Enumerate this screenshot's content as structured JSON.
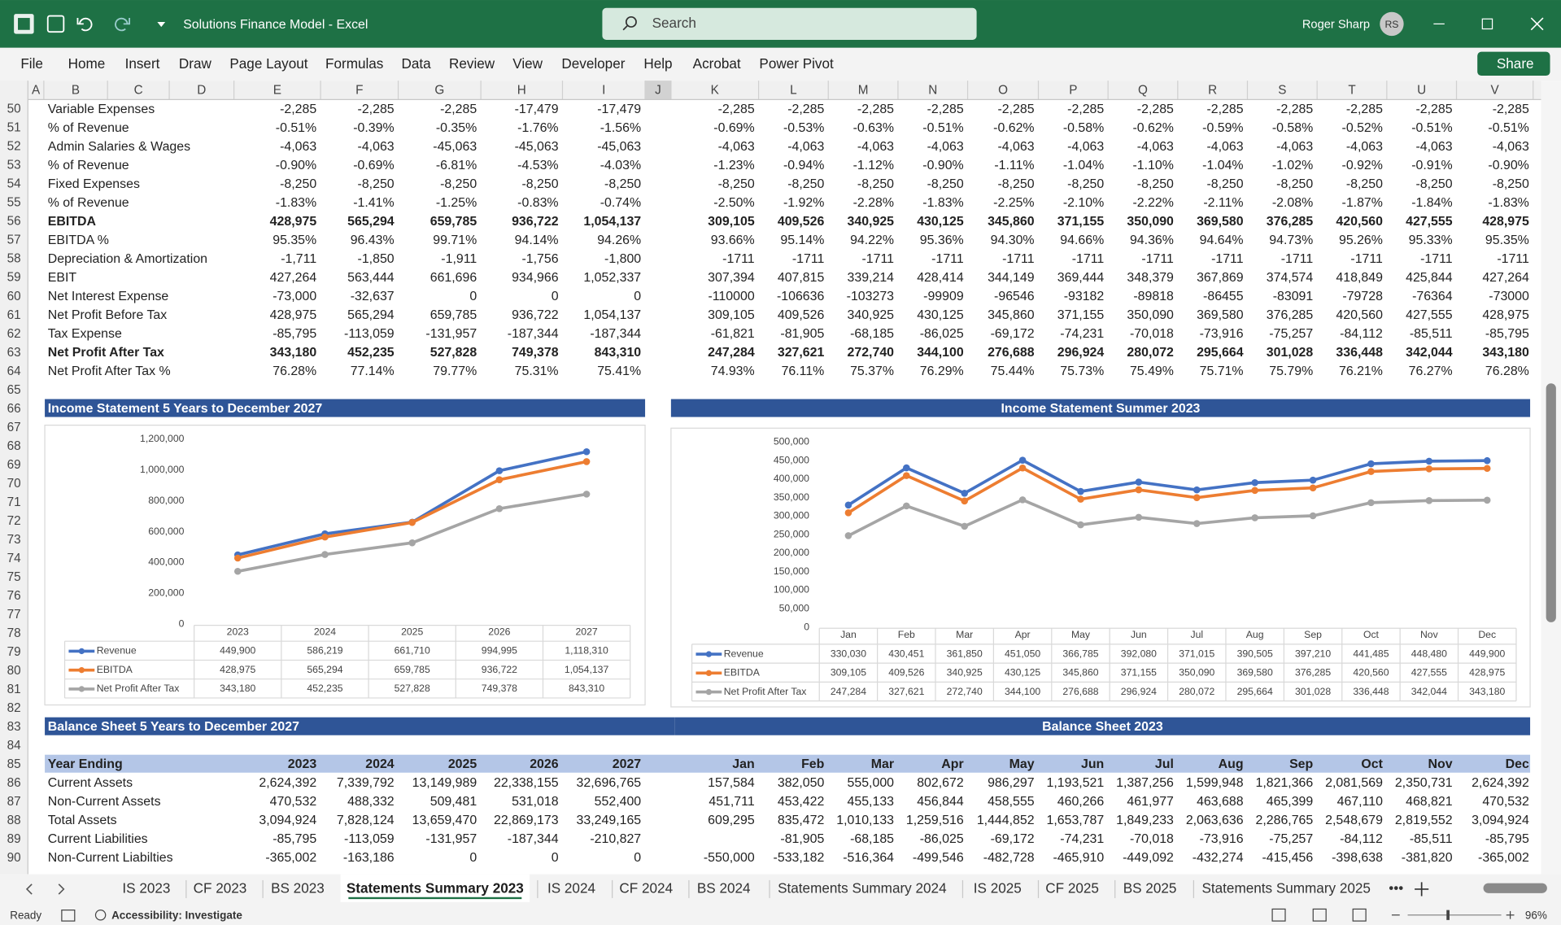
{
  "titlebar": {
    "title": "Solutions Finance Model  -  Excel",
    "search": "Search",
    "user": "Roger Sharp",
    "initials": "RS"
  },
  "ribbon": {
    "tabs": [
      "File",
      "Home",
      "Insert",
      "Draw",
      "Page Layout",
      "Formulas",
      "Data",
      "Review",
      "View",
      "Developer",
      "Help",
      "Acrobat",
      "Power Pivot"
    ],
    "share": "Share"
  },
  "columns": [
    "A",
    "B",
    "C",
    "D",
    "E",
    "F",
    "G",
    "H",
    "I",
    "J",
    "K",
    "L",
    "M",
    "N",
    "O",
    "P",
    "Q",
    "R",
    "S",
    "T",
    "U",
    "V"
  ],
  "row_numbers": [
    50,
    51,
    52,
    53,
    54,
    55,
    56,
    57,
    58,
    59,
    60,
    61,
    62,
    63,
    64,
    65,
    66,
    67,
    68,
    69,
    70,
    71,
    72,
    73,
    74,
    75,
    76,
    77,
    78,
    79,
    80,
    81,
    82,
    83,
    84,
    85,
    86,
    87,
    88,
    89,
    90
  ],
  "income_rows": [
    {
      "label": "Variable Expenses",
      "annual": [
        "-2,285",
        "-2,285",
        "-2,285",
        "-17,479",
        "-17,479"
      ],
      "monthly": [
        "-2,285",
        "-2,285",
        "-2,285",
        "-2,285",
        "-2,285",
        "-2,285",
        "-2,285",
        "-2,285",
        "-2,285",
        "-2,285",
        "-2,285",
        "-2,285"
      ]
    },
    {
      "label": "% of Revenue",
      "annual": [
        "-0.51%",
        "-0.39%",
        "-0.35%",
        "-1.76%",
        "-1.56%"
      ],
      "monthly": [
        "-0.69%",
        "-0.53%",
        "-0.63%",
        "-0.51%",
        "-0.62%",
        "-0.58%",
        "-0.62%",
        "-0.59%",
        "-0.58%",
        "-0.52%",
        "-0.51%",
        "-0.51%"
      ]
    },
    {
      "label": "Admin Salaries & Wages",
      "annual": [
        "-4,063",
        "-4,063",
        "-45,063",
        "-45,063",
        "-45,063"
      ],
      "monthly": [
        "-4,063",
        "-4,063",
        "-4,063",
        "-4,063",
        "-4,063",
        "-4,063",
        "-4,063",
        "-4,063",
        "-4,063",
        "-4,063",
        "-4,063",
        "-4,063"
      ]
    },
    {
      "label": "% of Revenue",
      "annual": [
        "-0.90%",
        "-0.69%",
        "-6.81%",
        "-4.53%",
        "-4.03%"
      ],
      "monthly": [
        "-1.23%",
        "-0.94%",
        "-1.12%",
        "-0.90%",
        "-1.11%",
        "-1.04%",
        "-1.10%",
        "-1.04%",
        "-1.02%",
        "-0.92%",
        "-0.91%",
        "-0.90%"
      ]
    },
    {
      "label": "Fixed Expenses",
      "annual": [
        "-8,250",
        "-8,250",
        "-8,250",
        "-8,250",
        "-8,250"
      ],
      "monthly": [
        "-8,250",
        "-8,250",
        "-8,250",
        "-8,250",
        "-8,250",
        "-8,250",
        "-8,250",
        "-8,250",
        "-8,250",
        "-8,250",
        "-8,250",
        "-8,250"
      ]
    },
    {
      "label": "% of Revenue",
      "annual": [
        "-1.83%",
        "-1.41%",
        "-1.25%",
        "-0.83%",
        "-0.74%"
      ],
      "monthly": [
        "-2.50%",
        "-1.92%",
        "-2.28%",
        "-1.83%",
        "-2.25%",
        "-2.10%",
        "-2.22%",
        "-2.11%",
        "-2.08%",
        "-1.87%",
        "-1.84%",
        "-1.83%"
      ]
    },
    {
      "label": "EBITDA",
      "bold": true,
      "annual": [
        "428,975",
        "565,294",
        "659,785",
        "936,722",
        "1,054,137"
      ],
      "monthly": [
        "309,105",
        "409,526",
        "340,925",
        "430,125",
        "345,860",
        "371,155",
        "350,090",
        "369,580",
        "376,285",
        "420,560",
        "427,555",
        "428,975"
      ]
    },
    {
      "label": "EBITDA %",
      "annual": [
        "95.35%",
        "96.43%",
        "99.71%",
        "94.14%",
        "94.26%"
      ],
      "monthly": [
        "93.66%",
        "95.14%",
        "94.22%",
        "95.36%",
        "94.30%",
        "94.66%",
        "94.36%",
        "94.64%",
        "94.73%",
        "95.26%",
        "95.33%",
        "95.35%"
      ]
    },
    {
      "label": "Depreciation & Amortization",
      "annual": [
        "-1,711",
        "-1,850",
        "-1,911",
        "-1,756",
        "-1,800"
      ],
      "monthly": [
        "-1711",
        "-1711",
        "-1711",
        "-1711",
        "-1711",
        "-1711",
        "-1711",
        "-1711",
        "-1711",
        "-1711",
        "-1711",
        "-1711"
      ]
    },
    {
      "label": "EBIT",
      "annual": [
        "427,264",
        "563,444",
        "661,696",
        "934,966",
        "1,052,337"
      ],
      "monthly": [
        "307,394",
        "407,815",
        "339,214",
        "428,414",
        "344,149",
        "369,444",
        "348,379",
        "367,869",
        "374,574",
        "418,849",
        "425,844",
        "427,264"
      ]
    },
    {
      "label": "Net Interest Expense",
      "annual": [
        "-73,000",
        "-32,637",
        "0",
        "0",
        "0"
      ],
      "monthly": [
        "-110000",
        "-106636",
        "-103273",
        "-99909",
        "-96546",
        "-93182",
        "-89818",
        "-86455",
        "-83091",
        "-79728",
        "-76364",
        "-73000"
      ]
    },
    {
      "label": "Net Profit Before Tax",
      "annual": [
        "428,975",
        "565,294",
        "659,785",
        "936,722",
        "1,054,137"
      ],
      "monthly": [
        "309,105",
        "409,526",
        "340,925",
        "430,125",
        "345,860",
        "371,155",
        "350,090",
        "369,580",
        "376,285",
        "420,560",
        "427,555",
        "428,975"
      ]
    },
    {
      "label": "Tax Expense",
      "annual": [
        "-85,795",
        "-113,059",
        "-131,957",
        "-187,344",
        "-187,344"
      ],
      "monthly": [
        "-61,821",
        "-81,905",
        "-68,185",
        "-86,025",
        "-69,172",
        "-74,231",
        "-70,018",
        "-73,916",
        "-75,257",
        "-84,112",
        "-85,511",
        "-85,795"
      ]
    },
    {
      "label": "Net Profit After Tax",
      "bold": true,
      "annual": [
        "343,180",
        "452,235",
        "527,828",
        "749,378",
        "843,310"
      ],
      "monthly": [
        "247,284",
        "327,621",
        "272,740",
        "344,100",
        "276,688",
        "296,924",
        "280,072",
        "295,664",
        "301,028",
        "336,448",
        "342,044",
        "343,180"
      ]
    },
    {
      "label": "Net Profit After Tax %",
      "annual": [
        "76.28%",
        "77.14%",
        "79.77%",
        "75.31%",
        "75.41%"
      ],
      "monthly": [
        "74.93%",
        "76.11%",
        "75.37%",
        "76.29%",
        "75.44%",
        "75.73%",
        "75.49%",
        "75.71%",
        "75.79%",
        "76.21%",
        "76.27%",
        "76.28%"
      ]
    }
  ],
  "section_headers": [
    "Income Statement 5 Years to December 2027",
    "Income Statement Summer 2023",
    "Balance Sheet 5 Years to December 2027",
    "Balance Sheet 2023"
  ],
  "chart_data": [
    {
      "type": "line",
      "categories": [
        "2023",
        "2024",
        "2025",
        "2026",
        "2027"
      ],
      "ylim": [
        0,
        1200000
      ],
      "yticks": [
        0,
        {
          "value": 200000,
          "label": "200,000"
        },
        {
          "value": 400000,
          "label": "400,000"
        },
        {
          "value": 600000,
          "label": "600,000"
        },
        {
          "value": 800000,
          "label": "800,000"
        },
        {
          "value": 1000000,
          "label": "1,000,000"
        },
        {
          "value": 1200000,
          "label": "1,200,000"
        }
      ],
      "grid": false,
      "series": [
        {
          "name": "Revenue",
          "color": "#4472c4",
          "values": [
            449900,
            586219,
            661710,
            994995,
            1118310
          ],
          "value_labels": [
            "449,900",
            "586,219",
            "661,710",
            "994,995",
            "1,118,310"
          ]
        },
        {
          "name": "EBITDA",
          "color": "#ed7d31",
          "values": [
            428975,
            565294,
            659785,
            936722,
            1054137
          ],
          "value_labels": [
            "428,975",
            "565,294",
            "659,785",
            "936,722",
            "1,054,137"
          ]
        },
        {
          "name": "Net Profit After Tax",
          "color": "#a5a5a5",
          "values": [
            343180,
            452235,
            527828,
            749378,
            843310
          ],
          "value_labels": [
            "343,180",
            "452,235",
            "527,828",
            "749,378",
            "843,310"
          ]
        }
      ]
    },
    {
      "type": "line",
      "categories": [
        "Jan",
        "Feb",
        "Mar",
        "Apr",
        "May",
        "Jun",
        "Jul",
        "Aug",
        "Sep",
        "Oct",
        "Nov",
        "Dec"
      ],
      "ylim": [
        0,
        500000
      ],
      "yticks": [
        0,
        {
          "value": 50000,
          "label": "50,000"
        },
        {
          "value": 100000,
          "label": "100,000"
        },
        {
          "value": 150000,
          "label": "150,000"
        },
        {
          "value": 200000,
          "label": "200,000"
        },
        {
          "value": 250000,
          "label": "250,000"
        },
        {
          "value": 300000,
          "label": "300,000"
        },
        {
          "value": 350000,
          "label": "350,000"
        },
        {
          "value": 400000,
          "label": "400,000"
        },
        {
          "value": 450000,
          "label": "450,000"
        },
        {
          "value": 500000,
          "label": "500,000"
        }
      ],
      "grid": false,
      "series": [
        {
          "name": "Revenue",
          "color": "#4472c4",
          "values": [
            330030,
            430451,
            361850,
            451050,
            366785,
            392080,
            371015,
            390505,
            397210,
            441485,
            448480,
            449900
          ],
          "value_labels": [
            "330,030",
            "430,451",
            "361,850",
            "451,050",
            "366,785",
            "392,080",
            "371,015",
            "390,505",
            "397,210",
            "441,485",
            "448,480",
            "449,900"
          ]
        },
        {
          "name": "EBITDA",
          "color": "#ed7d31",
          "values": [
            309105,
            409526,
            340925,
            430125,
            345860,
            371155,
            350090,
            369580,
            376285,
            420560,
            427555,
            428975
          ],
          "value_labels": [
            "309,105",
            "409,526",
            "340,925",
            "430,125",
            "345,860",
            "371,155",
            "350,090",
            "369,580",
            "376,285",
            "420,560",
            "427,555",
            "428,975"
          ]
        },
        {
          "name": "Net Profit After Tax",
          "color": "#a5a5a5",
          "values": [
            247284,
            327621,
            272740,
            344100,
            276688,
            296924,
            280072,
            295664,
            301028,
            336448,
            342044,
            343180
          ],
          "value_labels": [
            "247,284",
            "327,621",
            "272,740",
            "344,100",
            "276,688",
            "296,924",
            "280,072",
            "295,664",
            "301,028",
            "336,448",
            "342,044",
            "343,180"
          ]
        }
      ]
    }
  ],
  "balance_header": {
    "label": "Year Ending",
    "annual": [
      "2023",
      "2024",
      "2025",
      "2026",
      "2027"
    ],
    "monthly": [
      "Jan",
      "Feb",
      "Mar",
      "Apr",
      "May",
      "Jun",
      "Jul",
      "Aug",
      "Sep",
      "Oct",
      "Nov",
      "Dec"
    ]
  },
  "balance_rows": [
    {
      "label": "Current Assets",
      "annual": [
        "2,624,392",
        "7,339,792",
        "13,149,989",
        "22,338,155",
        "32,696,765"
      ],
      "monthly": [
        "157,584",
        "382,050",
        "555,000",
        "802,672",
        "986,297",
        "1,193,521",
        "1,387,256",
        "1,599,948",
        "1,821,366",
        "2,081,569",
        "2,350,731",
        "2,624,392"
      ]
    },
    {
      "label": "Non-Current Assets",
      "annual": [
        "470,532",
        "488,332",
        "509,481",
        "531,018",
        "552,400"
      ],
      "monthly": [
        "451,711",
        "453,422",
        "455,133",
        "456,844",
        "458,555",
        "460,266",
        "461,977",
        "463,688",
        "465,399",
        "467,110",
        "468,821",
        "470,532"
      ]
    },
    {
      "label": "Total Assets",
      "annual": [
        "3,094,924",
        "7,828,124",
        "13,659,470",
        "22,869,173",
        "33,249,165"
      ],
      "monthly": [
        "609,295",
        "835,472",
        "1,010,133",
        "1,259,516",
        "1,444,852",
        "1,653,787",
        "1,849,233",
        "2,063,636",
        "2,286,765",
        "2,548,679",
        "2,819,552",
        "3,094,924"
      ]
    },
    {
      "label": "Current Liabilities",
      "annual": [
        "-85,795",
        "-113,059",
        "-131,957",
        "-187,344",
        "-210,827"
      ],
      "monthly": [
        null,
        "-81,905",
        "-68,185",
        "-86,025",
        "-69,172",
        "-74,231",
        "-70,018",
        "-73,916",
        "-75,257",
        "-84,112",
        "-85,511",
        "-85,795"
      ]
    },
    {
      "label": "Non-Current Liabilties",
      "annual": [
        "-365,002",
        "-163,186",
        "0",
        "0",
        "0"
      ],
      "monthly": [
        "-550,000",
        "-533,182",
        "-516,364",
        "-499,546",
        "-482,728",
        "-465,910",
        "-449,092",
        "-432,274",
        "-415,456",
        "-398,638",
        "-381,820",
        "-365,002"
      ]
    }
  ],
  "sheet_tabs": [
    {
      "name": "IS 2023"
    },
    {
      "name": "CF 2023"
    },
    {
      "name": "BS 2023"
    },
    {
      "name": "Statements Summary 2023",
      "active": true
    },
    {
      "name": "IS 2024"
    },
    {
      "name": "CF 2024"
    },
    {
      "name": "BS 2024"
    },
    {
      "name": "Statements Summary 2024"
    },
    {
      "name": "IS 2025"
    },
    {
      "name": "CF 2025"
    },
    {
      "name": "BS 2025"
    },
    {
      "name": "Statements Summary 2025"
    }
  ],
  "status": {
    "ready": "Ready",
    "accessibility": "Accessibility: Investigate",
    "zoom": "96%"
  }
}
